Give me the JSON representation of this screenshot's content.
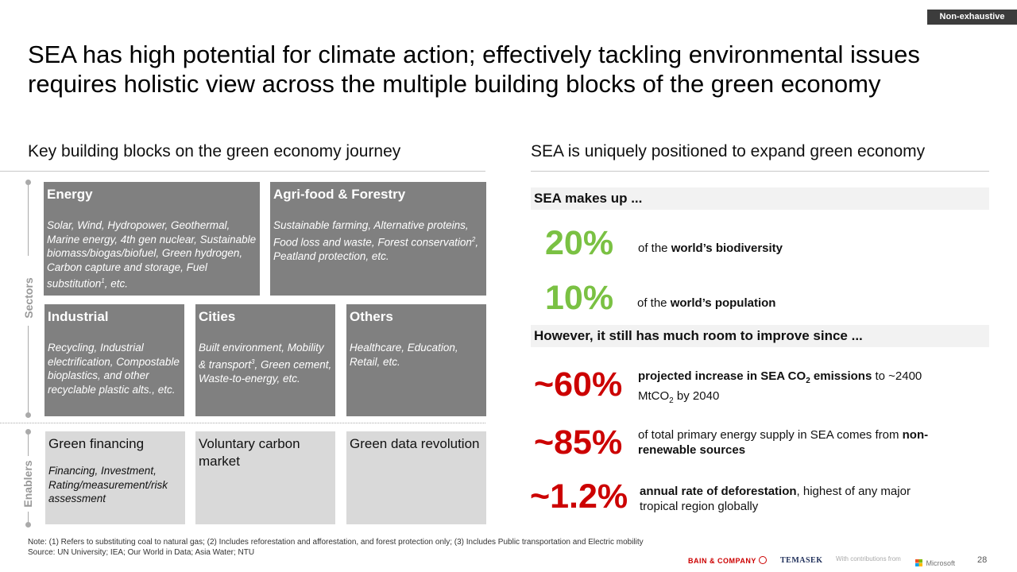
{
  "tag": "Non-exhaustive",
  "title": "SEA has high potential for climate action; effectively tackling environmental issues requires holistic view across the multiple building blocks of the green economy",
  "left": {
    "heading": "Key building blocks on the green economy journey",
    "sectors_label": "Sectors",
    "enablers_label": "Enablers",
    "sectors": [
      {
        "title": "Energy",
        "desc": "Solar, Wind, Hydropower, Geothermal, Marine energy, 4th gen nuclear, Sustainable biomass/biogas/biofuel, Green hydrogen, Carbon capture and storage, Fuel substitution",
        "sup": "1",
        "tail": ", etc."
      },
      {
        "title": "Agri-food & Forestry",
        "desc": "Sustainable farming, Alternative proteins, Food loss and waste, Forest conservation",
        "sup": "2",
        "tail": ", Peatland protection, etc."
      },
      {
        "title": "Industrial",
        "desc": "Recycling, Industrial electrification, Compostable bioplastics, and other recyclable plastic alts., etc."
      },
      {
        "title": "Cities",
        "desc": "Built environment, Mobility & transport",
        "sup": "3",
        "tail": ", Green cement, Waste-to-energy, etc."
      },
      {
        "title": "Others",
        "desc": "Healthcare, Education, Retail, etc."
      }
    ],
    "enablers": [
      {
        "title": "Green financing",
        "desc": "Financing, Investment, Rating/measurement/risk assessment"
      },
      {
        "title": "Voluntary carbon market",
        "desc": ""
      },
      {
        "title": "Green data revolution",
        "desc": ""
      }
    ]
  },
  "right": {
    "heading": "SEA is uniquely positioned to expand green economy",
    "band1": "SEA makes up ...",
    "stat1": {
      "value": "20%",
      "pre": "of the ",
      "bold": "world’s biodiversity"
    },
    "stat2": {
      "value": "10%",
      "pre": "of the ",
      "bold": "world’s population"
    },
    "band2": "However, it still has much room to improve since ...",
    "stat3": {
      "value": "~60%",
      "bold": "projected increase in SEA CO",
      "bold_sub": "2",
      "bold_tail": " emissions",
      "rest": " to ~2400 MtCO",
      "rest_sub": "2",
      "rest_tail": " by 2040"
    },
    "stat4": {
      "value": "~85%",
      "pre": "of total primary energy supply in SEA comes from ",
      "bold": "non-renewable sources"
    },
    "stat5": {
      "value": "~1.2%",
      "bold": "annual rate of deforestation",
      "rest": ", highest of any major tropical region globally"
    }
  },
  "note": "Note: (1) Refers to substituting coal to natural gas; (2) Includes reforestation and afforestation, and forest protection only; (3) Includes Public transportation and Electric mobility",
  "source": "Source: UN University; IEA; Our World in Data; Asia Water; NTU",
  "footer": {
    "bain": "BAIN & COMPANY",
    "temasek": "TEMASEK",
    "contrib": "With contributions from",
    "microsoft": "Microsoft",
    "page": "28"
  },
  "colors": {
    "green": "#7ac143",
    "red": "#cc0000",
    "block": "#808080",
    "enabler": "#d9d9d9"
  }
}
